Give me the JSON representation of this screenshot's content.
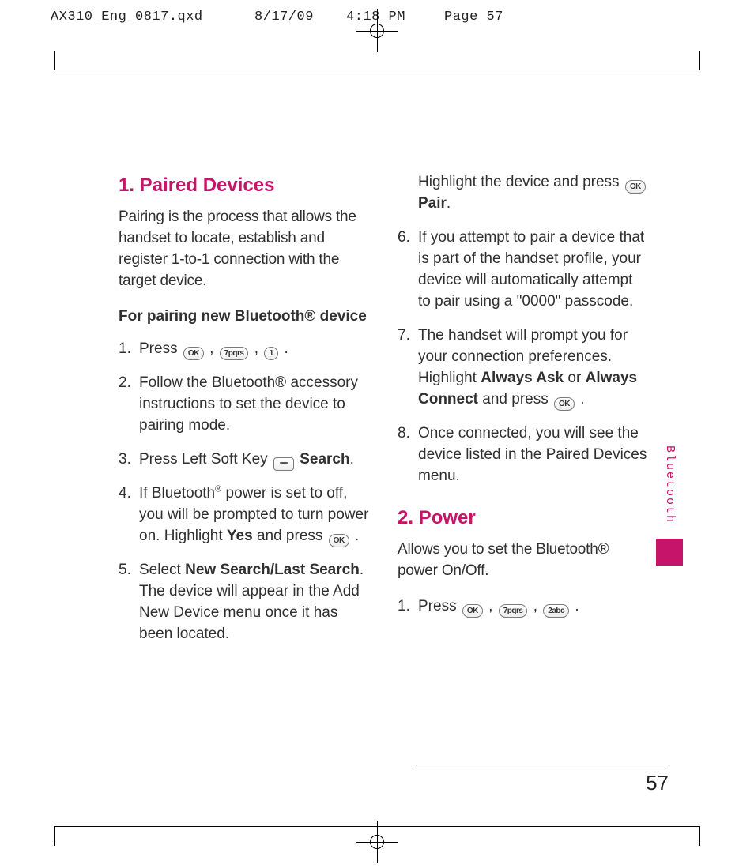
{
  "printHeader": {
    "file": "AX310_Eng_0817.qxd",
    "date": "8/17/09",
    "time": "4:18 PM",
    "page": "Page 57"
  },
  "sideTab": "Bluetooth",
  "pageNumber": "57",
  "accent": "#c6146a",
  "col1": {
    "h": "1. Paired Devices",
    "intro": "Pairing is the process that allows the handset to locate, establish and register 1-to-1 connection with the target device.",
    "sub": "For pairing new Bluetooth® device",
    "items": [
      {
        "n": "1.",
        "pre": "Press ",
        "keys": [
          "OK",
          "7pqrs",
          "1"
        ],
        "post": " ."
      },
      {
        "n": "2.",
        "text": "Follow the Bluetooth® accessory instructions to set the device to pairing mode."
      },
      {
        "n": "3.",
        "pre": "Press Left Soft Key ",
        "softkey": true,
        "boldTail": " Search",
        "post": "."
      },
      {
        "n": "4.",
        "html": "If Bluetooth<span class='sup'>®</span> power is set to off, you will be prompted to turn power on. Highlight <span class='b'>Yes</span> and press ",
        "keys": [
          "OK"
        ],
        "post": " ."
      },
      {
        "n": "5.",
        "html": "Select <span class='b'>New Search/Last Search</span>. The device will appear in the Add New Device menu once it has been located."
      }
    ]
  },
  "col2": {
    "lead": {
      "html": "Highlight the device and press ",
      "keys": [
        "OK"
      ],
      "boldTail": " Pair",
      "post": "."
    },
    "items": [
      {
        "n": "6.",
        "text": "If you attempt to pair a device that is part of the handset profile, your device will automatically attempt to pair using a \"0000\" passcode."
      },
      {
        "n": "7.",
        "html": "The handset will prompt you for your connection preferences. Highlight <span class='b'>Always Ask</span> or <span class='b'>Always Connect</span> and press ",
        "keys": [
          "OK"
        ],
        "post": " ."
      },
      {
        "n": "8.",
        "text": "Once connected, you will see the device listed in the Paired Devices menu."
      }
    ],
    "h2": "2. Power",
    "intro2": "Allows you to set the Bluetooth® power On/Off.",
    "step2": {
      "n": "1.",
      "pre": "Press ",
      "keys": [
        "OK",
        "7pqrs",
        "2abc"
      ],
      "post": " ."
    }
  }
}
